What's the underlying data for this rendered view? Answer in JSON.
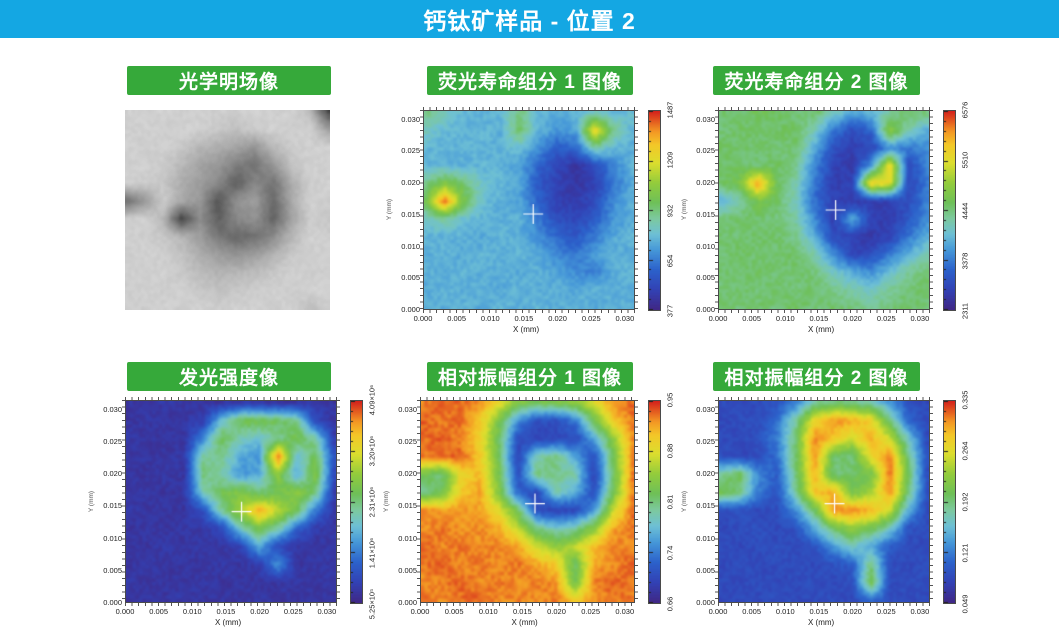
{
  "header": {
    "title": "钙钛矿样品 - 位置 2",
    "bg_color": "#14A7E3",
    "text_color": "#FFFFFF"
  },
  "colors": {
    "badge_green": "#36A93A",
    "crosshair": "#FFFFFF",
    "colormap_stops": [
      [
        0.0,
        "#402886"
      ],
      [
        0.1,
        "#3242B5"
      ],
      [
        0.2,
        "#2C62CB"
      ],
      [
        0.3,
        "#4698D8"
      ],
      [
        0.38,
        "#6EC0D5"
      ],
      [
        0.46,
        "#7DC99E"
      ],
      [
        0.54,
        "#6EC058"
      ],
      [
        0.64,
        "#94CC3C"
      ],
      [
        0.74,
        "#DCDE2E"
      ],
      [
        0.83,
        "#F3C828"
      ],
      [
        0.9,
        "#F39624"
      ],
      [
        1.0,
        "#D4221C"
      ]
    ]
  },
  "axis": {
    "xlabel": "X (mm)",
    "ylabel": "Y (mm)",
    "x_ticks": [
      "0.000",
      "0.005",
      "0.010",
      "0.015",
      "0.020",
      "0.025",
      "0.030"
    ],
    "y_ticks": [
      "0.000",
      "0.005",
      "0.010",
      "0.015",
      "0.020",
      "0.025",
      "0.030"
    ],
    "xlim": [
      0,
      0.0315
    ],
    "ylim": [
      0,
      0.0315
    ]
  },
  "chart_data": [
    {
      "id": "optical",
      "type": "image",
      "title": "光学明场像",
      "description": "grayscale bright-field micrograph of ring-shaped perovskite crystallite with dark specks",
      "crosshair": null,
      "values": [
        [
          0.8,
          0.79,
          0.8,
          0.78,
          0.8,
          0.79,
          0.78,
          0.8,
          0.79,
          0.8,
          0.72,
          0.28
        ],
        [
          0.79,
          0.8,
          0.78,
          0.8,
          0.79,
          0.76,
          0.73,
          0.78,
          0.8,
          0.78,
          0.8,
          0.62
        ],
        [
          0.8,
          0.78,
          0.8,
          0.76,
          0.7,
          0.66,
          0.62,
          0.56,
          0.7,
          0.78,
          0.79,
          0.8
        ],
        [
          0.78,
          0.8,
          0.77,
          0.7,
          0.62,
          0.58,
          0.48,
          0.44,
          0.58,
          0.74,
          0.8,
          0.78
        ],
        [
          0.8,
          0.78,
          0.76,
          0.66,
          0.6,
          0.52,
          0.36,
          0.52,
          0.44,
          0.66,
          0.78,
          0.8
        ],
        [
          0.42,
          0.58,
          0.78,
          0.64,
          0.58,
          0.32,
          0.56,
          0.6,
          0.4,
          0.64,
          0.8,
          0.78
        ],
        [
          0.78,
          0.8,
          0.7,
          0.26,
          0.54,
          0.36,
          0.52,
          0.56,
          0.38,
          0.62,
          0.78,
          0.76
        ],
        [
          0.8,
          0.78,
          0.76,
          0.7,
          0.6,
          0.46,
          0.4,
          0.42,
          0.54,
          0.7,
          0.8,
          0.78
        ],
        [
          0.78,
          0.8,
          0.78,
          0.74,
          0.66,
          0.6,
          0.56,
          0.6,
          0.68,
          0.76,
          0.78,
          0.8
        ],
        [
          0.8,
          0.78,
          0.8,
          0.76,
          0.72,
          0.68,
          0.7,
          0.72,
          0.76,
          0.8,
          0.78,
          0.78
        ],
        [
          0.78,
          0.8,
          0.78,
          0.8,
          0.76,
          0.74,
          0.76,
          0.78,
          0.8,
          0.78,
          0.8,
          0.8
        ],
        [
          0.8,
          0.78,
          0.8,
          0.78,
          0.8,
          0.78,
          0.8,
          0.8,
          0.78,
          0.8,
          0.72,
          0.78
        ]
      ]
    },
    {
      "id": "flim1",
      "type": "heatmap",
      "title": "荧光寿命组分 1 图像",
      "colorbar_ticks": [
        "377",
        "654",
        "932",
        "1209",
        "1487"
      ],
      "value_min": 377,
      "value_max": 1487,
      "crosshair": [
        0.52,
        0.52
      ],
      "values": [
        [
          0.5,
          0.42,
          0.36,
          0.34,
          0.37,
          0.5,
          0.36,
          0.33,
          0.36,
          0.42,
          0.36,
          0.38
        ],
        [
          0.42,
          0.37,
          0.35,
          0.36,
          0.34,
          0.52,
          0.35,
          0.3,
          0.32,
          0.8,
          0.48,
          0.36
        ],
        [
          0.36,
          0.35,
          0.36,
          0.35,
          0.36,
          0.38,
          0.28,
          0.18,
          0.2,
          0.45,
          0.36,
          0.34
        ],
        [
          0.35,
          0.36,
          0.34,
          0.36,
          0.35,
          0.32,
          0.2,
          0.12,
          0.05,
          0.13,
          0.27,
          0.35
        ],
        [
          0.48,
          0.6,
          0.52,
          0.4,
          0.36,
          0.33,
          0.17,
          0.1,
          0.06,
          0.1,
          0.24,
          0.33
        ],
        [
          0.55,
          0.95,
          0.58,
          0.38,
          0.34,
          0.32,
          0.2,
          0.09,
          0.08,
          0.13,
          0.28,
          0.35
        ],
        [
          0.4,
          0.46,
          0.38,
          0.36,
          0.34,
          0.35,
          0.24,
          0.14,
          0.12,
          0.18,
          0.3,
          0.34
        ],
        [
          0.36,
          0.34,
          0.35,
          0.33,
          0.36,
          0.34,
          0.29,
          0.2,
          0.17,
          0.25,
          0.33,
          0.36
        ],
        [
          0.34,
          0.36,
          0.33,
          0.36,
          0.34,
          0.36,
          0.33,
          0.27,
          0.24,
          0.31,
          0.35,
          0.33
        ],
        [
          0.36,
          0.33,
          0.36,
          0.34,
          0.35,
          0.33,
          0.35,
          0.32,
          0.28,
          0.25,
          0.34,
          0.36
        ],
        [
          0.33,
          0.36,
          0.34,
          0.35,
          0.33,
          0.36,
          0.34,
          0.35,
          0.33,
          0.36,
          0.34,
          0.33
        ],
        [
          0.36,
          0.34,
          0.36,
          0.33,
          0.36,
          0.34,
          0.36,
          0.34,
          0.36,
          0.33,
          0.35,
          0.35
        ]
      ]
    },
    {
      "id": "flim2",
      "type": "heatmap",
      "title": "荧光寿命组分 2 图像",
      "colorbar_ticks": [
        "2311",
        "3378",
        "4444",
        "5510",
        "6576"
      ],
      "value_min": 2311,
      "value_max": 6576,
      "crosshair": [
        0.555,
        0.5
      ],
      "values": [
        [
          0.52,
          0.5,
          0.54,
          0.52,
          0.5,
          0.52,
          0.42,
          0.32,
          0.36,
          0.46,
          0.52,
          0.5
        ],
        [
          0.5,
          0.53,
          0.51,
          0.52,
          0.53,
          0.42,
          0.24,
          0.14,
          0.2,
          0.62,
          0.44,
          0.34
        ],
        [
          0.53,
          0.51,
          0.52,
          0.5,
          0.52,
          0.34,
          0.14,
          0.09,
          0.11,
          0.28,
          0.24,
          0.28
        ],
        [
          0.51,
          0.52,
          0.5,
          0.53,
          0.48,
          0.27,
          0.11,
          0.07,
          0.3,
          0.8,
          0.14,
          0.26
        ],
        [
          0.52,
          0.58,
          0.9,
          0.54,
          0.44,
          0.24,
          0.09,
          0.11,
          0.82,
          0.76,
          0.12,
          0.24
        ],
        [
          0.34,
          0.44,
          0.58,
          0.52,
          0.42,
          0.22,
          0.11,
          0.07,
          0.09,
          0.1,
          0.14,
          0.26
        ],
        [
          0.5,
          0.52,
          0.51,
          0.5,
          0.45,
          0.27,
          0.09,
          0.34,
          0.11,
          0.08,
          0.17,
          0.28
        ],
        [
          0.52,
          0.5,
          0.52,
          0.52,
          0.48,
          0.34,
          0.14,
          0.09,
          0.07,
          0.11,
          0.24,
          0.33
        ],
        [
          0.5,
          0.53,
          0.5,
          0.51,
          0.52,
          0.44,
          0.28,
          0.11,
          0.14,
          0.24,
          0.34,
          0.44
        ],
        [
          0.52,
          0.5,
          0.53,
          0.5,
          0.52,
          0.5,
          0.41,
          0.34,
          0.28,
          0.38,
          0.47,
          0.5
        ],
        [
          0.5,
          0.52,
          0.5,
          0.52,
          0.5,
          0.52,
          0.48,
          0.44,
          0.41,
          0.47,
          0.5,
          0.52
        ],
        [
          0.53,
          0.5,
          0.52,
          0.5,
          0.53,
          0.5,
          0.52,
          0.5,
          0.47,
          0.5,
          0.52,
          0.5
        ]
      ]
    },
    {
      "id": "intensity",
      "type": "heatmap",
      "title": "发光强度像",
      "colorbar_ticks": [
        "5.25×10⁵",
        "1.41×10⁶",
        "2.31×10⁶",
        "3.20×10⁶",
        "4.09×10⁶"
      ],
      "value_min": 525000,
      "value_max": 4090000,
      "crosshair": [
        0.55,
        0.55
      ],
      "values": [
        [
          0.06,
          0.05,
          0.07,
          0.05,
          0.06,
          0.05,
          0.07,
          0.06,
          0.05,
          0.06,
          0.07,
          0.05
        ],
        [
          0.05,
          0.07,
          0.05,
          0.06,
          0.08,
          0.38,
          0.55,
          0.57,
          0.54,
          0.48,
          0.12,
          0.06
        ],
        [
          0.07,
          0.05,
          0.06,
          0.05,
          0.28,
          0.55,
          0.42,
          0.38,
          0.46,
          0.57,
          0.45,
          0.08
        ],
        [
          0.05,
          0.06,
          0.05,
          0.07,
          0.46,
          0.48,
          0.33,
          0.3,
          0.95,
          0.36,
          0.56,
          0.14
        ],
        [
          0.06,
          0.05,
          0.07,
          0.05,
          0.5,
          0.44,
          0.3,
          0.33,
          0.62,
          0.33,
          0.6,
          0.12
        ],
        [
          0.05,
          0.07,
          0.05,
          0.06,
          0.42,
          0.55,
          0.6,
          0.5,
          0.55,
          0.62,
          0.5,
          0.08
        ],
        [
          0.07,
          0.05,
          0.06,
          0.05,
          0.14,
          0.46,
          0.66,
          0.88,
          0.7,
          0.55,
          0.24,
          0.06
        ],
        [
          0.05,
          0.06,
          0.05,
          0.07,
          0.06,
          0.12,
          0.42,
          0.56,
          0.46,
          0.2,
          0.08,
          0.05
        ],
        [
          0.06,
          0.05,
          0.07,
          0.05,
          0.07,
          0.05,
          0.1,
          0.34,
          0.12,
          0.06,
          0.05,
          0.07
        ],
        [
          0.05,
          0.07,
          0.05,
          0.06,
          0.05,
          0.07,
          0.05,
          0.08,
          0.3,
          0.05,
          0.07,
          0.05
        ],
        [
          0.07,
          0.05,
          0.06,
          0.05,
          0.07,
          0.05,
          0.06,
          0.05,
          0.06,
          0.07,
          0.05,
          0.06
        ],
        [
          0.05,
          0.06,
          0.05,
          0.07,
          0.05,
          0.06,
          0.05,
          0.07,
          0.05,
          0.05,
          0.06,
          0.05
        ]
      ]
    },
    {
      "id": "amp1",
      "type": "heatmap",
      "title": "相对振幅组分 1 图像",
      "colorbar_ticks": [
        "0.66",
        "0.74",
        "0.81",
        "0.88",
        "0.95"
      ],
      "value_min": 0.66,
      "value_max": 0.95,
      "crosshair": [
        0.535,
        0.51
      ],
      "values": [
        [
          0.92,
          0.95,
          0.93,
          0.9,
          0.78,
          0.6,
          0.55,
          0.57,
          0.62,
          0.75,
          0.9,
          0.94
        ],
        [
          0.95,
          0.92,
          0.94,
          0.82,
          0.58,
          0.28,
          0.14,
          0.14,
          0.24,
          0.55,
          0.82,
          0.93
        ],
        [
          0.93,
          0.95,
          0.91,
          0.8,
          0.54,
          0.14,
          0.1,
          0.12,
          0.12,
          0.33,
          0.62,
          0.9
        ],
        [
          0.92,
          0.94,
          0.95,
          0.82,
          0.54,
          0.11,
          0.44,
          0.5,
          0.33,
          0.14,
          0.56,
          0.9
        ],
        [
          0.56,
          0.5,
          0.78,
          0.85,
          0.57,
          0.14,
          0.5,
          0.48,
          0.45,
          0.11,
          0.52,
          0.92
        ],
        [
          0.46,
          0.56,
          0.82,
          0.88,
          0.6,
          0.2,
          0.12,
          0.44,
          0.34,
          0.14,
          0.56,
          0.91
        ],
        [
          0.92,
          0.88,
          0.9,
          0.88,
          0.76,
          0.54,
          0.14,
          0.1,
          0.12,
          0.3,
          0.72,
          0.94
        ],
        [
          0.9,
          0.93,
          0.89,
          0.91,
          0.87,
          0.7,
          0.5,
          0.4,
          0.46,
          0.62,
          0.88,
          0.92
        ],
        [
          0.95,
          0.91,
          0.93,
          0.9,
          0.92,
          0.88,
          0.72,
          0.62,
          0.7,
          0.84,
          0.92,
          0.9
        ],
        [
          0.93,
          0.95,
          0.9,
          0.93,
          0.9,
          0.93,
          0.88,
          0.82,
          0.52,
          0.88,
          0.9,
          0.95
        ],
        [
          0.9,
          0.92,
          0.95,
          0.9,
          0.93,
          0.9,
          0.92,
          0.9,
          0.56,
          0.92,
          0.95,
          0.91
        ],
        [
          0.95,
          0.9,
          0.93,
          0.95,
          0.9,
          0.92,
          0.9,
          0.93,
          0.82,
          0.9,
          0.92,
          0.93
        ]
      ]
    },
    {
      "id": "amp2",
      "type": "heatmap",
      "title": "相对振幅组分 2 图像",
      "colorbar_ticks": [
        "0.049",
        "0.121",
        "0.192",
        "0.264",
        "0.335"
      ],
      "value_min": 0.049,
      "value_max": 0.335,
      "crosshair": [
        0.55,
        0.51
      ],
      "values": [
        [
          0.14,
          0.12,
          0.13,
          0.15,
          0.26,
          0.46,
          0.5,
          0.48,
          0.44,
          0.3,
          0.15,
          0.12
        ],
        [
          0.12,
          0.14,
          0.13,
          0.22,
          0.46,
          0.78,
          0.9,
          0.88,
          0.8,
          0.5,
          0.2,
          0.13
        ],
        [
          0.13,
          0.12,
          0.15,
          0.25,
          0.52,
          0.92,
          0.82,
          0.72,
          0.86,
          0.72,
          0.4,
          0.12
        ],
        [
          0.14,
          0.12,
          0.13,
          0.22,
          0.52,
          0.9,
          0.52,
          0.5,
          0.78,
          0.92,
          0.5,
          0.14
        ],
        [
          0.46,
          0.56,
          0.28,
          0.18,
          0.5,
          0.86,
          0.5,
          0.52,
          0.56,
          0.94,
          0.54,
          0.13
        ],
        [
          0.56,
          0.5,
          0.25,
          0.15,
          0.46,
          0.82,
          0.88,
          0.56,
          0.66,
          0.9,
          0.5,
          0.14
        ],
        [
          0.13,
          0.15,
          0.12,
          0.14,
          0.28,
          0.52,
          0.9,
          0.92,
          0.86,
          0.72,
          0.34,
          0.12
        ],
        [
          0.12,
          0.13,
          0.15,
          0.12,
          0.15,
          0.33,
          0.54,
          0.62,
          0.56,
          0.42,
          0.15,
          0.13
        ],
        [
          0.14,
          0.12,
          0.13,
          0.14,
          0.12,
          0.15,
          0.3,
          0.42,
          0.32,
          0.18,
          0.13,
          0.12
        ],
        [
          0.12,
          0.14,
          0.12,
          0.13,
          0.14,
          0.12,
          0.15,
          0.18,
          0.5,
          0.14,
          0.12,
          0.14
        ],
        [
          0.13,
          0.12,
          0.14,
          0.12,
          0.13,
          0.14,
          0.12,
          0.14,
          0.58,
          0.13,
          0.14,
          0.12
        ],
        [
          0.12,
          0.13,
          0.12,
          0.14,
          0.12,
          0.13,
          0.14,
          0.12,
          0.22,
          0.14,
          0.12,
          0.13
        ]
      ]
    }
  ]
}
